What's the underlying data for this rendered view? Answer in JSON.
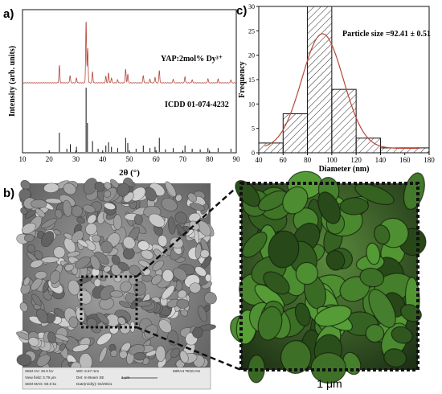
{
  "panel_labels": {
    "a": "a)",
    "b": "b)",
    "c": "c)"
  },
  "chart_data": [
    {
      "panel": "a",
      "type": "line",
      "xlabel": "2θ (°)",
      "ylabel": "Intensity (arb. units)",
      "xlim": [
        10,
        90
      ],
      "x_ticks": [
        10,
        20,
        30,
        40,
        50,
        60,
        70,
        80,
        90
      ],
      "series": [
        {
          "name": "YAP:2mol% Dy³⁺",
          "color": "#b5473a",
          "peaks": [
            {
              "x": 23.8,
              "h": 0.28
            },
            {
              "x": 27.8,
              "h": 0.12
            },
            {
              "x": 30.2,
              "h": 0.08
            },
            {
              "x": 33.8,
              "h": 1.0
            },
            {
              "x": 34.4,
              "h": 0.55
            },
            {
              "x": 36.2,
              "h": 0.18
            },
            {
              "x": 41.2,
              "h": 0.1
            },
            {
              "x": 42.2,
              "h": 0.16
            },
            {
              "x": 43.3,
              "h": 0.08
            },
            {
              "x": 45.6,
              "h": 0.05
            },
            {
              "x": 48.6,
              "h": 0.22
            },
            {
              "x": 49.4,
              "h": 0.14
            },
            {
              "x": 55.2,
              "h": 0.12
            },
            {
              "x": 57.7,
              "h": 0.06
            },
            {
              "x": 59.6,
              "h": 0.09
            },
            {
              "x": 61.2,
              "h": 0.2
            },
            {
              "x": 66.4,
              "h": 0.06
            },
            {
              "x": 70.8,
              "h": 0.1
            },
            {
              "x": 73.5,
              "h": 0.05
            },
            {
              "x": 79.4,
              "h": 0.07
            },
            {
              "x": 83.2,
              "h": 0.06
            },
            {
              "x": 88.0,
              "h": 0.05
            }
          ]
        },
        {
          "name": "ICDD 01-074-4232",
          "color": "#111111",
          "sticks": [
            {
              "x": 23.8,
              "h": 0.3
            },
            {
              "x": 26.6,
              "h": 0.05
            },
            {
              "x": 27.9,
              "h": 0.12
            },
            {
              "x": 30.2,
              "h": 0.08
            },
            {
              "x": 33.8,
              "h": 1.0
            },
            {
              "x": 34.3,
              "h": 0.45
            },
            {
              "x": 36.2,
              "h": 0.17
            },
            {
              "x": 38.3,
              "h": 0.05
            },
            {
              "x": 41.2,
              "h": 0.1
            },
            {
              "x": 42.2,
              "h": 0.15
            },
            {
              "x": 43.3,
              "h": 0.08
            },
            {
              "x": 45.6,
              "h": 0.06
            },
            {
              "x": 48.6,
              "h": 0.22
            },
            {
              "x": 49.4,
              "h": 0.14
            },
            {
              "x": 52.5,
              "h": 0.05
            },
            {
              "x": 55.2,
              "h": 0.1
            },
            {
              "x": 57.7,
              "h": 0.06
            },
            {
              "x": 59.6,
              "h": 0.08
            },
            {
              "x": 61.2,
              "h": 0.22
            },
            {
              "x": 63.5,
              "h": 0.04
            },
            {
              "x": 66.4,
              "h": 0.06
            },
            {
              "x": 70.8,
              "h": 0.1
            },
            {
              "x": 73.5,
              "h": 0.05
            },
            {
              "x": 76.5,
              "h": 0.04
            },
            {
              "x": 79.4,
              "h": 0.06
            },
            {
              "x": 83.2,
              "h": 0.06
            },
            {
              "x": 88.0,
              "h": 0.05
            }
          ]
        }
      ]
    },
    {
      "panel": "c",
      "type": "bar",
      "xlabel": "Diameter (nm)",
      "ylabel": "Frequency",
      "xlim": [
        40,
        180
      ],
      "ylim": [
        0,
        30
      ],
      "x_ticks": [
        40,
        60,
        80,
        100,
        120,
        140,
        160,
        180
      ],
      "y_ticks": [
        0,
        5,
        10,
        15,
        20,
        25,
        30
      ],
      "bins": [
        {
          "x0": 40,
          "x1": 60,
          "value": 2
        },
        {
          "x0": 60,
          "x1": 80,
          "value": 8
        },
        {
          "x0": 80,
          "x1": 100,
          "value": 30
        },
        {
          "x0": 100,
          "x1": 120,
          "value": 13
        },
        {
          "x0": 120,
          "x1": 140,
          "value": 3
        },
        {
          "x0": 140,
          "x1": 180,
          "value": 1
        }
      ],
      "fit": {
        "type": "gaussian",
        "mean": 92.41,
        "sigma": 17,
        "peak": 23.5,
        "color": "#b5473a"
      },
      "annotation": "Particle size =92.41 ± 0.51"
    }
  ],
  "sem": {
    "info_rows": [
      [
        "SEM HV: 20.0 kV",
        "WD: 5.57 mm",
        "",
        "MIRA3 TESCAN"
      ],
      [
        "View field: 3.79 μm",
        "Det: In-Beam SE",
        "1 μm",
        ""
      ],
      [
        "SEM MAG: 50.0 kx",
        "Date(m/d/y): 04/29/21",
        "",
        ""
      ]
    ],
    "zoom_scale_label": "1 μm"
  }
}
